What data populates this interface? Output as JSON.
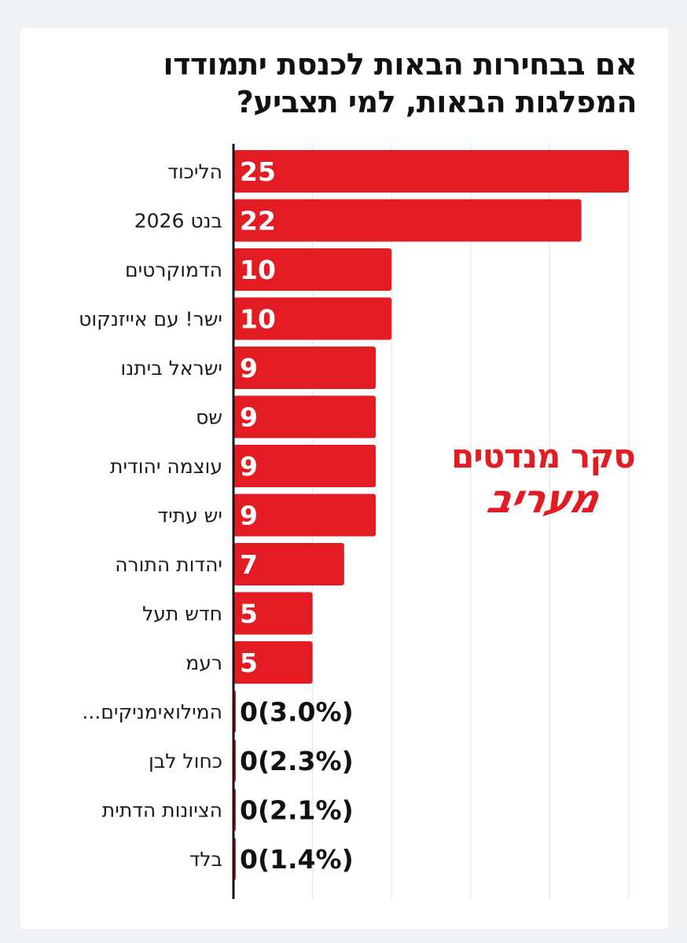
{
  "chart_data": {
    "type": "bar",
    "orientation": "horizontal",
    "title": "אם בבחירות הבאות לכנסת יתמודדו המפלגות הבאות, למי תצביע?",
    "categories": [
      "הליכוד",
      "בנט 2026",
      "הדמוקרטים",
      "ישר! עם אייזנקוט",
      "ישראל ביתנו",
      "שס",
      "עוצמה יהודית",
      "יש עתיד",
      "יהדות התורה",
      "חדש תעל",
      "רעמ",
      "...המילואימניקים",
      "כחול לבן",
      "הציונות הדתית",
      "בלד"
    ],
    "values": [
      25,
      22,
      10,
      10,
      9,
      9,
      9,
      9,
      7,
      5,
      5,
      0,
      0,
      0,
      0
    ],
    "value_labels": [
      "25",
      "22",
      "10",
      "10",
      "9",
      "9",
      "9",
      "9",
      "7",
      "5",
      "5",
      "0(3.0%)",
      "0(2.3%)",
      "0(2.1%)",
      "0(1.4%)"
    ],
    "xlim": [
      0,
      25
    ],
    "grid": true,
    "bar_color": "#e31b23"
  },
  "branding": {
    "line1": "סקר מנדטים",
    "line2": "מעריב"
  }
}
